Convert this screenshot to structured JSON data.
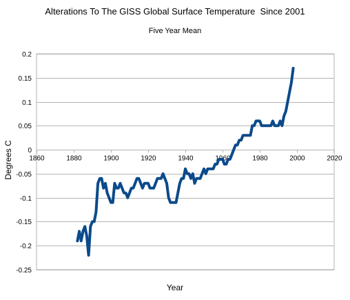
{
  "chart_data": {
    "type": "line",
    "title": "Alterations To The GISS Global Surface Temperature  Since 2001",
    "subtitle": "Five Year Mean",
    "xlabel": "Year",
    "ylabel": "Degrees C",
    "xlim": [
      1860,
      2020
    ],
    "ylim": [
      -0.25,
      0.2
    ],
    "xticks": [
      1860,
      1880,
      1900,
      1920,
      1940,
      1960,
      1980,
      2000,
      2020
    ],
    "yticks": [
      0.2,
      0.15,
      0.1,
      0.05,
      0,
      -0.05,
      -0.1,
      -0.15,
      -0.2,
      -0.25
    ],
    "ytick_labels": [
      "0.2",
      "0.15",
      "0.1",
      "0.05",
      "0",
      "-0.05",
      "-0.1",
      "-0.15",
      "-0.2",
      "-0.25"
    ],
    "grid": "horizontal",
    "line_color": "#0b4a8b",
    "series": [
      {
        "x": [
          1882,
          1883,
          1884,
          1885,
          1886,
          1887,
          1888,
          1889,
          1890,
          1891,
          1892,
          1893,
          1894,
          1895,
          1896,
          1897,
          1898,
          1899,
          1900,
          1901,
          1902,
          1903,
          1904,
          1905,
          1906,
          1907,
          1908,
          1909,
          1910,
          1911,
          1912,
          1913,
          1914,
          1915,
          1916,
          1917,
          1918,
          1919,
          1920,
          1921,
          1922,
          1923,
          1924,
          1925,
          1926,
          1927,
          1928,
          1929,
          1930,
          1931,
          1932,
          1933,
          1934,
          1935,
          1936,
          1937,
          1938,
          1939,
          1940,
          1941,
          1942,
          1943,
          1944,
          1945,
          1946,
          1947,
          1948,
          1949,
          1950,
          1951,
          1952,
          1953,
          1954,
          1955,
          1956,
          1957,
          1958,
          1959,
          1960,
          1961,
          1962,
          1963,
          1964,
          1965,
          1966,
          1967,
          1968,
          1969,
          1970,
          1971,
          1972,
          1973,
          1974,
          1975,
          1976,
          1977,
          1978,
          1979,
          1980,
          1981,
          1982,
          1983,
          1984,
          1985,
          1986,
          1987,
          1988,
          1989,
          1990,
          1991,
          1992,
          1993,
          1994,
          1995,
          1996,
          1997,
          1998
        ],
        "y": [
          -0.19,
          -0.17,
          -0.19,
          -0.17,
          -0.16,
          -0.18,
          -0.22,
          -0.16,
          -0.15,
          -0.15,
          -0.13,
          -0.07,
          -0.06,
          -0.06,
          -0.08,
          -0.07,
          -0.09,
          -0.1,
          -0.11,
          -0.11,
          -0.07,
          -0.08,
          -0.08,
          -0.07,
          -0.08,
          -0.09,
          -0.09,
          -0.1,
          -0.09,
          -0.08,
          -0.08,
          -0.07,
          -0.06,
          -0.06,
          -0.07,
          -0.08,
          -0.07,
          -0.07,
          -0.07,
          -0.08,
          -0.08,
          -0.08,
          -0.07,
          -0.06,
          -0.06,
          -0.06,
          -0.05,
          -0.06,
          -0.07,
          -0.1,
          -0.11,
          -0.11,
          -0.11,
          -0.11,
          -0.09,
          -0.07,
          -0.06,
          -0.06,
          -0.04,
          -0.05,
          -0.05,
          -0.06,
          -0.05,
          -0.07,
          -0.06,
          -0.06,
          -0.06,
          -0.05,
          -0.04,
          -0.05,
          -0.04,
          -0.04,
          -0.04,
          -0.04,
          -0.03,
          -0.03,
          -0.02,
          -0.02,
          -0.02,
          -0.03,
          -0.03,
          -0.02,
          -0.02,
          -0.01,
          0.0,
          0.01,
          0.01,
          0.02,
          0.02,
          0.03,
          0.03,
          0.03,
          0.03,
          0.03,
          0.05,
          0.05,
          0.06,
          0.06,
          0.06,
          0.05,
          0.05,
          0.05,
          0.05,
          0.05,
          0.05,
          0.06,
          0.05,
          0.05,
          0.05,
          0.06,
          0.05,
          0.07,
          0.08,
          0.1,
          0.12,
          0.14,
          0.17
        ]
      }
    ]
  }
}
